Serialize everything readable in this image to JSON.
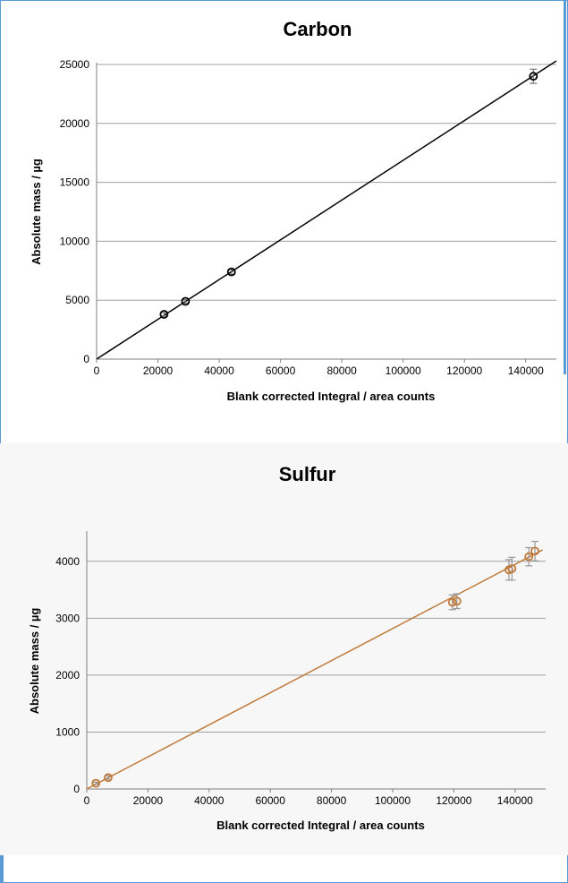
{
  "chart_data": [
    {
      "id": "carbon",
      "type": "scatter",
      "title": "Carbon",
      "xlabel": "Blank corrected Integral / area counts",
      "ylabel": "Absolute mass / µg",
      "xlim": [
        0,
        150000
      ],
      "ylim": [
        0,
        25000
      ],
      "xticks": [
        0,
        20000,
        40000,
        60000,
        80000,
        100000,
        120000,
        140000
      ],
      "yticks": [
        0,
        5000,
        10000,
        15000,
        20000,
        25000
      ],
      "grid": "horizontal",
      "marker_color": "#000000",
      "errorbar_color": "#777777",
      "line_color": "#000000",
      "points": [
        {
          "x": 22000,
          "y": 3800,
          "err": 150
        },
        {
          "x": 29000,
          "y": 4900,
          "err": 150
        },
        {
          "x": 44000,
          "y": 7400,
          "err": 200
        },
        {
          "x": 142500,
          "y": 24000,
          "err": 600
        }
      ],
      "fit_line": {
        "x": [
          0,
          150000
        ],
        "y": [
          0,
          25300
        ]
      }
    },
    {
      "id": "sulfur",
      "type": "scatter",
      "title": "Sulfur",
      "xlabel": "Blank corrected Integral / area counts",
      "ylabel": "Absolute mass / µg",
      "xlim": [
        0,
        150000
      ],
      "ylim": [
        0,
        4500
      ],
      "xticks": [
        0,
        20000,
        40000,
        60000,
        80000,
        100000,
        120000,
        140000
      ],
      "yticks": [
        0,
        1000,
        2000,
        3000,
        4000
      ],
      "grid": "horizontal",
      "marker_color": "#c07a3a",
      "errorbar_color": "#999999",
      "line_color": "#c07a3a",
      "points": [
        {
          "x": 3000,
          "y": 100,
          "err": 20
        },
        {
          "x": 7000,
          "y": 200,
          "err": 30
        },
        {
          "x": 119500,
          "y": 3280,
          "err": 130
        },
        {
          "x": 121000,
          "y": 3300,
          "err": 130
        },
        {
          "x": 138000,
          "y": 3850,
          "err": 180
        },
        {
          "x": 139000,
          "y": 3870,
          "err": 200
        },
        {
          "x": 144500,
          "y": 4080,
          "err": 160
        },
        {
          "x": 146500,
          "y": 4180,
          "err": 170
        }
      ],
      "fit_line": {
        "x": [
          0,
          149000
        ],
        "y": [
          0,
          4200
        ]
      }
    }
  ]
}
